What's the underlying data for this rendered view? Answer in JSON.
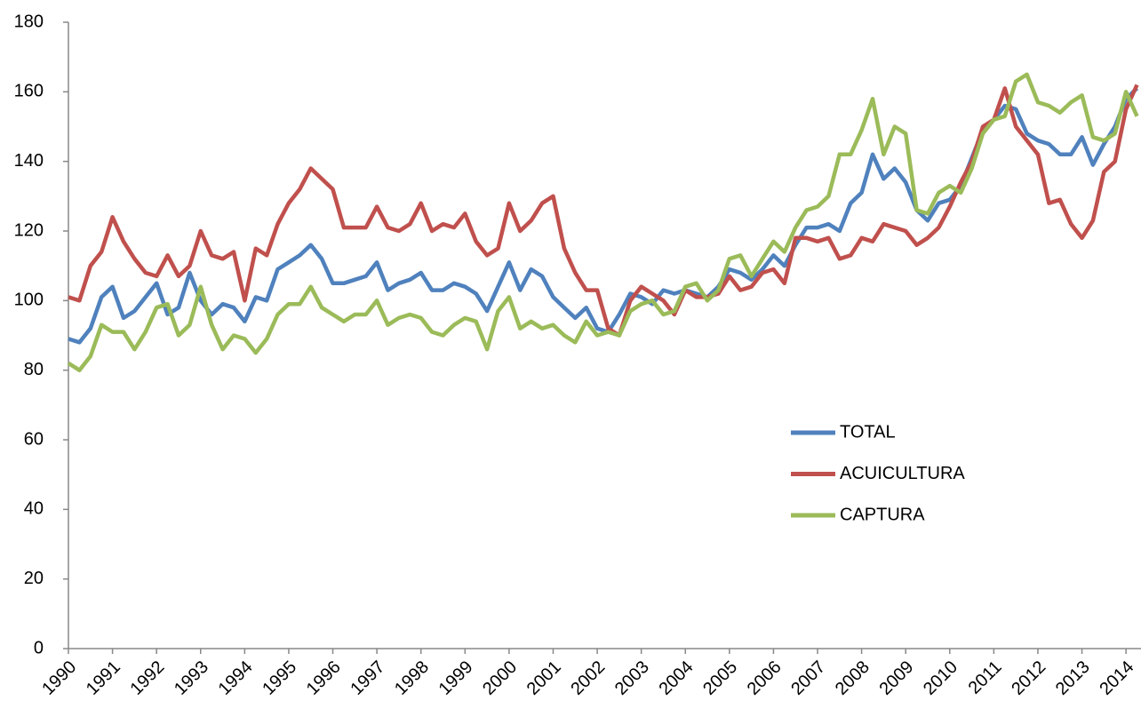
{
  "chart_data": {
    "type": "line",
    "x": [
      1990,
      1990.25,
      1990.5,
      1990.75,
      1991,
      1991.25,
      1991.5,
      1991.75,
      1992,
      1992.25,
      1992.5,
      1992.75,
      1993,
      1993.25,
      1993.5,
      1993.75,
      1994,
      1994.25,
      1994.5,
      1994.75,
      1995,
      1995.25,
      1995.5,
      1995.75,
      1996,
      1996.25,
      1996.5,
      1996.75,
      1997,
      1997.25,
      1997.5,
      1997.75,
      1998,
      1998.25,
      1998.5,
      1998.75,
      1999,
      1999.25,
      1999.5,
      1999.75,
      2000,
      2000.25,
      2000.5,
      2000.75,
      2001,
      2001.25,
      2001.5,
      2001.75,
      2002,
      2002.25,
      2002.5,
      2002.75,
      2003,
      2003.25,
      2003.5,
      2003.75,
      2004,
      2004.25,
      2004.5,
      2004.75,
      2005,
      2005.25,
      2005.5,
      2005.75,
      2006,
      2006.25,
      2006.5,
      2006.75,
      2007,
      2007.25,
      2007.5,
      2007.75,
      2008,
      2008.25,
      2008.5,
      2008.75,
      2009,
      2009.25,
      2009.5,
      2009.75,
      2010,
      2010.25,
      2010.5,
      2010.75,
      2011,
      2011.25,
      2011.5,
      2011.75,
      2012,
      2012.25,
      2012.5,
      2012.75,
      2013,
      2013.25,
      2013.5,
      2013.75,
      2014,
      2014.25
    ],
    "series": [
      {
        "name": "TOTAL",
        "color": "#4f81bd",
        "values": [
          89,
          88,
          92,
          101,
          104,
          95,
          97,
          101,
          105,
          96,
          98,
          108,
          100,
          96,
          99,
          98,
          94,
          101,
          100,
          109,
          111,
          113,
          116,
          112,
          105,
          105,
          106,
          107,
          111,
          103,
          105,
          106,
          108,
          103,
          103,
          105,
          104,
          102,
          97,
          104,
          111,
          103,
          109,
          107,
          101,
          98,
          95,
          98,
          92,
          91,
          96,
          102,
          101,
          99,
          103,
          102,
          103,
          102,
          101,
          104,
          109,
          108,
          106,
          109,
          113,
          110,
          116,
          121,
          121,
          122,
          120,
          128,
          131,
          142,
          135,
          138,
          134,
          126,
          123,
          128,
          129,
          133,
          141,
          149,
          152,
          156,
          155,
          148,
          146,
          145,
          142,
          142,
          147,
          139,
          145,
          150,
          158,
          161
        ]
      },
      {
        "name": "ACUICULTURA",
        "color": "#c0504d",
        "values": [
          101,
          100,
          110,
          114,
          124,
          117,
          112,
          108,
          107,
          113,
          107,
          110,
          120,
          113,
          112,
          114,
          100,
          115,
          113,
          122,
          128,
          132,
          138,
          135,
          132,
          121,
          121,
          121,
          127,
          121,
          120,
          122,
          128,
          120,
          122,
          121,
          125,
          117,
          113,
          115,
          128,
          120,
          123,
          128,
          130,
          115,
          108,
          103,
          103,
          92,
          90,
          100,
          104,
          102,
          100,
          96,
          103,
          101,
          101,
          102,
          107,
          103,
          104,
          108,
          109,
          105,
          118,
          118,
          117,
          118,
          112,
          113,
          118,
          117,
          122,
          121,
          120,
          116,
          118,
          121,
          127,
          134,
          140,
          150,
          152,
          161,
          150,
          146,
          142,
          128,
          129,
          122,
          118,
          123,
          137,
          140,
          155,
          162
        ]
      },
      {
        "name": "CAPTURA",
        "color": "#9bbb59",
        "values": [
          82,
          80,
          84,
          93,
          91,
          91,
          86,
          91,
          98,
          99,
          90,
          93,
          104,
          93,
          86,
          90,
          89,
          85,
          89,
          96,
          99,
          99,
          104,
          98,
          96,
          94,
          96,
          96,
          100,
          93,
          95,
          96,
          95,
          91,
          90,
          93,
          95,
          94,
          86,
          97,
          101,
          92,
          94,
          92,
          93,
          90,
          88,
          94,
          90,
          91,
          90,
          97,
          99,
          100,
          96,
          97,
          104,
          105,
          100,
          103,
          112,
          113,
          107,
          112,
          117,
          114,
          121,
          126,
          127,
          130,
          142,
          142,
          149,
          158,
          142,
          150,
          148,
          126,
          125,
          131,
          133,
          131,
          138,
          148,
          152,
          153,
          163,
          165,
          157,
          156,
          154,
          157,
          159,
          147,
          146,
          148,
          160,
          153
        ]
      }
    ],
    "xlim": [
      1990,
      2014.34
    ],
    "xticks": [
      1990,
      1991,
      1992,
      1993,
      1994,
      1995,
      1996,
      1997,
      1998,
      1999,
      2000,
      2001,
      2002,
      2003,
      2004,
      2005,
      2006,
      2007,
      2008,
      2009,
      2010,
      2011,
      2012,
      2013,
      2014
    ],
    "ylim": [
      0,
      180
    ],
    "yticks": [
      0,
      20,
      40,
      60,
      80,
      100,
      120,
      140,
      160,
      180
    ],
    "legend": "right",
    "grid": false
  }
}
